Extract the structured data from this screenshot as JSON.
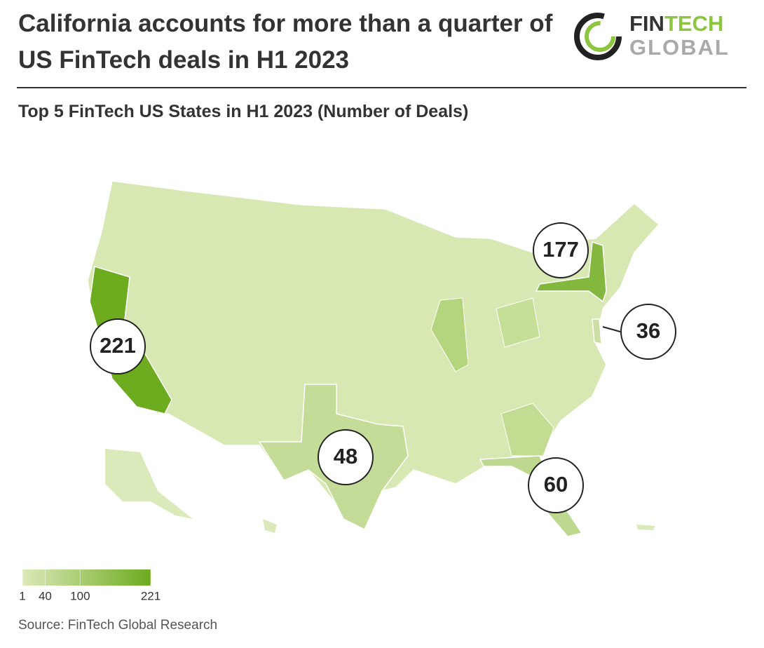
{
  "chart_data": {
    "type": "map",
    "title": "California accounts for more than a quarter of US FinTech deals in H1 2023",
    "subtitle": "Top 5 FinTech US States in H1 2023 (Number of Deals)",
    "values": [
      221,
      177,
      36,
      48,
      60
    ],
    "clim": [
      1,
      221
    ],
    "legend_ticks": [
      1,
      40,
      100,
      221
    ],
    "color_low": "#dce9b9",
    "color_high": "#6dab1f",
    "source": "Source: FinTech Global Research"
  },
  "logo": {
    "word1": "FIN",
    "word2": "TECH",
    "word3": "GLOBAL"
  }
}
